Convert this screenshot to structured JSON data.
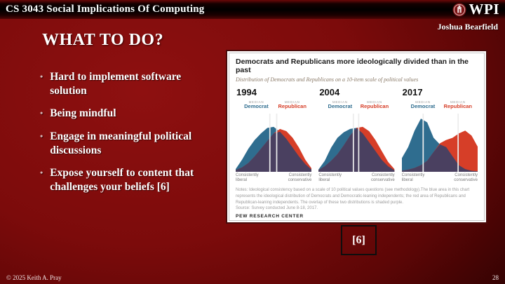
{
  "header": {
    "course_title": "CS 3043 Social Implications Of Computing",
    "logo": {
      "text": "WPI"
    },
    "author": "Joshua Bearfield"
  },
  "slide": {
    "title": "WHAT TO DO?",
    "bullets": [
      "Hard to implement software solution",
      "Being mindful",
      "Engage in meaningful political discussions",
      "Expose yourself to content that challenges your beliefs [6]"
    ],
    "citation_label": "[6]"
  },
  "footer": {
    "copyright": "© 2025 Keith A. Pray",
    "page_number": "28"
  },
  "chart_data": {
    "type": "area",
    "title": "Democrats and Republicans more ideologically divided than in the past",
    "subtitle": "Distribution of Democrats and Republicans on a 10-item scale of political values",
    "median_label": "MEDIAN",
    "series_labels": {
      "democrat": "Democrat",
      "republican": "Republican"
    },
    "x_axis": {
      "left_label": "Consistently liberal",
      "right_label": "Consistently conservative"
    },
    "colors": {
      "democrat": "#2f6d8f",
      "republican": "#d63e28",
      "overlap": "#4a4060",
      "median_line": "#ececec"
    },
    "x_pct": [
      0,
      8.3,
      16.7,
      25,
      33.3,
      41.7,
      50,
      58.3,
      66.7,
      75,
      83.3,
      91.7,
      100
    ],
    "panels": [
      {
        "year": "1994",
        "democrat_median_pct": 45,
        "republican_median_pct": 54,
        "democrat_density": [
          0.05,
          0.22,
          0.42,
          0.58,
          0.7,
          0.8,
          0.82,
          0.73,
          0.6,
          0.44,
          0.28,
          0.14,
          0.04
        ],
        "republican_density": [
          0.03,
          0.08,
          0.16,
          0.28,
          0.42,
          0.56,
          0.7,
          0.78,
          0.74,
          0.62,
          0.44,
          0.22,
          0.06
        ]
      },
      {
        "year": "2004",
        "democrat_median_pct": 46,
        "republican_median_pct": 53,
        "democrat_density": [
          0.04,
          0.2,
          0.44,
          0.62,
          0.72,
          0.78,
          0.8,
          0.7,
          0.54,
          0.38,
          0.22,
          0.1,
          0.03
        ],
        "republican_density": [
          0.03,
          0.1,
          0.2,
          0.32,
          0.48,
          0.66,
          0.8,
          0.82,
          0.74,
          0.58,
          0.38,
          0.18,
          0.05
        ]
      },
      {
        "year": "2017",
        "democrat_median_pct": 28,
        "republican_median_pct": 74,
        "democrat_density": [
          0.25,
          0.45,
          0.75,
          0.97,
          0.9,
          0.62,
          0.5,
          0.45,
          0.28,
          0.12,
          0.05,
          0.02,
          0.01
        ],
        "republican_density": [
          0.02,
          0.04,
          0.07,
          0.12,
          0.2,
          0.36,
          0.52,
          0.58,
          0.62,
          0.7,
          0.75,
          0.66,
          0.45
        ]
      }
    ],
    "notes": "Notes: Ideological consistency based on a scale of 10 political values questions (see methodology).The blue area in this chart represents the ideological distribution of Democrats and Democratic-leaning independents; the red area of Republicans and Republican-leaning independents. The overlap of these two distributions is shaded purple.",
    "source": "Source: Survey conducted June 8-18, 2017.",
    "brand": "PEW RESEARCH CENTER"
  }
}
